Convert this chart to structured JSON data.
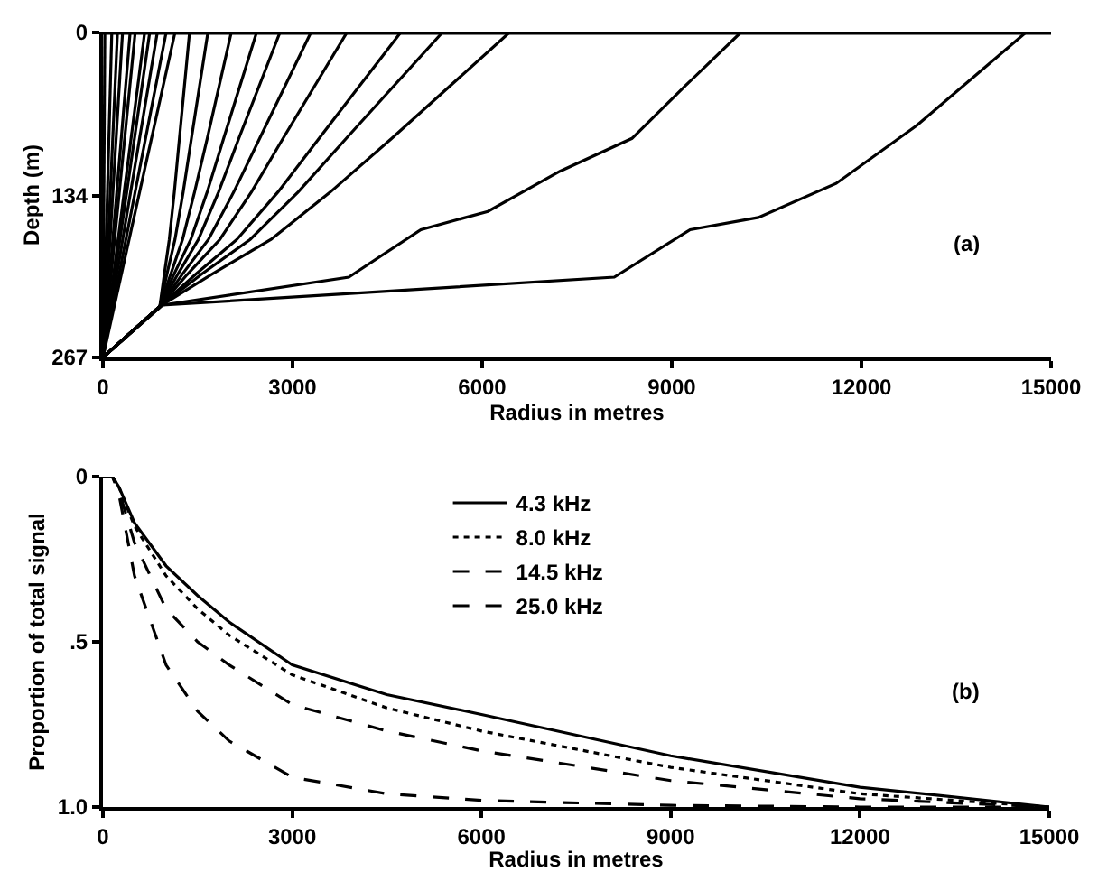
{
  "chart_data": [
    {
      "type": "line",
      "xlabel": "Radius in metres",
      "ylabel": "Depth (m)",
      "annotations": [
        "(a)"
      ],
      "xlim": [
        0,
        15000
      ],
      "xticks": [
        0,
        3000,
        6000,
        9000,
        12000,
        15000
      ],
      "ylim": [
        267,
        0
      ],
      "yticks": [
        0,
        134,
        267
      ],
      "grid": false,
      "legend": false,
      "marker": "none",
      "line_style": "solid",
      "ref_lines": [
        {
          "axis": "y",
          "value": 0,
          "color": "#000000"
        }
      ],
      "series": [
        {
          "color": "#000000",
          "x": [
            0,
            30
          ],
          "values": [
            267,
            0
          ]
        },
        {
          "color": "#000000",
          "x": [
            0,
            140
          ],
          "values": [
            267,
            0
          ]
        },
        {
          "color": "#000000",
          "x": [
            0,
            230
          ],
          "values": [
            267,
            0
          ]
        },
        {
          "color": "#000000",
          "x": [
            0,
            310
          ],
          "values": [
            267,
            0
          ]
        },
        {
          "color": "#000000",
          "x": [
            0,
            430
          ],
          "values": [
            267,
            0
          ]
        },
        {
          "color": "#000000",
          "x": [
            0,
            510
          ],
          "values": [
            267,
            0
          ]
        },
        {
          "color": "#000000",
          "x": [
            0,
            660
          ],
          "values": [
            267,
            0
          ]
        },
        {
          "color": "#000000",
          "x": [
            0,
            740
          ],
          "values": [
            267,
            0
          ]
        },
        {
          "color": "#000000",
          "x": [
            0,
            860
          ],
          "values": [
            267,
            0
          ]
        },
        {
          "color": "#000000",
          "x": [
            0,
            1000
          ],
          "values": [
            267,
            0
          ]
        },
        {
          "color": "#000000",
          "x": [
            0,
            1140
          ],
          "values": [
            267,
            0
          ]
        },
        {
          "color": "#000000",
          "x": [
            0,
            900,
            970,
            1050,
            1130,
            1210,
            1370
          ],
          "values": [
            267,
            225,
            199,
            170,
            131,
            87,
            0
          ]
        },
        {
          "color": "#000000",
          "x": [
            0,
            900,
            1010,
            1140,
            1270,
            1400,
            1660
          ],
          "values": [
            267,
            225,
            199,
            170,
            131,
            87,
            0
          ]
        },
        {
          "color": "#000000",
          "x": [
            0,
            900,
            1070,
            1260,
            1450,
            1650,
            2030
          ],
          "values": [
            267,
            225,
            199,
            170,
            131,
            87,
            0
          ]
        },
        {
          "color": "#000000",
          "x": [
            0,
            900,
            1120,
            1390,
            1650,
            1910,
            2430
          ],
          "values": [
            267,
            225,
            199,
            170,
            131,
            87,
            0
          ]
        },
        {
          "color": "#000000",
          "x": [
            0,
            900,
            1180,
            1510,
            1830,
            2150,
            2800
          ],
          "values": [
            267,
            225,
            199,
            170,
            131,
            87,
            0
          ]
        },
        {
          "color": "#000000",
          "x": [
            0,
            900,
            1250,
            1670,
            2070,
            2480,
            3290
          ],
          "values": [
            267,
            225,
            199,
            170,
            131,
            87,
            0
          ]
        },
        {
          "color": "#000000",
          "x": [
            0,
            900,
            1330,
            1850,
            2350,
            2850,
            3860
          ],
          "values": [
            267,
            225,
            199,
            170,
            131,
            87,
            0
          ]
        },
        {
          "color": "#000000",
          "x": [
            0,
            900,
            1460,
            2120,
            2770,
            3420,
            4710
          ],
          "values": [
            267,
            225,
            199,
            170,
            131,
            87,
            0
          ]
        },
        {
          "color": "#000000",
          "x": [
            0,
            900,
            1550,
            2330,
            3090,
            3850,
            5370
          ],
          "values": [
            267,
            225,
            199,
            170,
            131,
            87,
            0
          ]
        },
        {
          "color": "#000000",
          "x": [
            0,
            900,
            1710,
            2660,
            3600,
            4570,
            6430
          ],
          "values": [
            267,
            225,
            199,
            170,
            131,
            87,
            0
          ]
        },
        {
          "color": "#000000",
          "x": [
            0,
            940,
            3890,
            5030,
            6090,
            7230,
            8370,
            9230,
            10090
          ],
          "values": [
            267,
            224,
            201,
            162,
            147,
            114,
            87,
            43,
            0
          ]
        },
        {
          "color": "#000000",
          "x": [
            0,
            940,
            8090,
            9290,
            10370,
            11600,
            12860,
            14600
          ],
          "values": [
            267,
            224,
            201,
            162,
            152,
            124,
            77,
            0
          ]
        }
      ]
    },
    {
      "type": "line",
      "xlabel": "Radius in metres",
      "ylabel": "Proportion of total signal",
      "annotations": [
        "(b)"
      ],
      "xlim": [
        0,
        15000
      ],
      "xticks": [
        0,
        3000,
        6000,
        9000,
        12000,
        15000
      ],
      "ylim": [
        1,
        0
      ],
      "yticks": [
        0,
        {
          "value": 0.5,
          "label": ".5"
        },
        {
          "value": 1,
          "label": "1.0"
        }
      ],
      "grid": false,
      "legend": "top",
      "marker": "none",
      "x": [
        0,
        150,
        250,
        500,
        1000,
        1500,
        2000,
        3000,
        4500,
        6000,
        9000,
        12000,
        15000
      ],
      "series": [
        {
          "name": "4.3 kHz",
          "color": "#000000",
          "line_style": "solid",
          "values": [
            0,
            0,
            0.03,
            0.14,
            0.27,
            0.36,
            0.44,
            0.57,
            0.66,
            0.72,
            0.845,
            0.94,
            1
          ]
        },
        {
          "name": "8.0 kHz",
          "color": "#000000",
          "line_style": "dotted",
          "values": [
            0,
            0,
            0.03,
            0.15,
            0.3,
            0.4,
            0.48,
            0.6,
            0.7,
            0.77,
            0.88,
            0.96,
            1
          ]
        },
        {
          "name": "14.5 kHz",
          "color": "#000000",
          "line_style": "dashed",
          "values": [
            0,
            0,
            0.04,
            0.2,
            0.4,
            0.5,
            0.57,
            0.69,
            0.77,
            0.83,
            0.92,
            0.975,
            1
          ]
        },
        {
          "name": "25.0 kHz",
          "color": "#000000",
          "line_style": "dashed",
          "values": [
            0,
            0,
            0.05,
            0.3,
            0.57,
            0.71,
            0.8,
            0.91,
            0.96,
            0.98,
            0.995,
            1,
            1
          ]
        }
      ]
    }
  ]
}
